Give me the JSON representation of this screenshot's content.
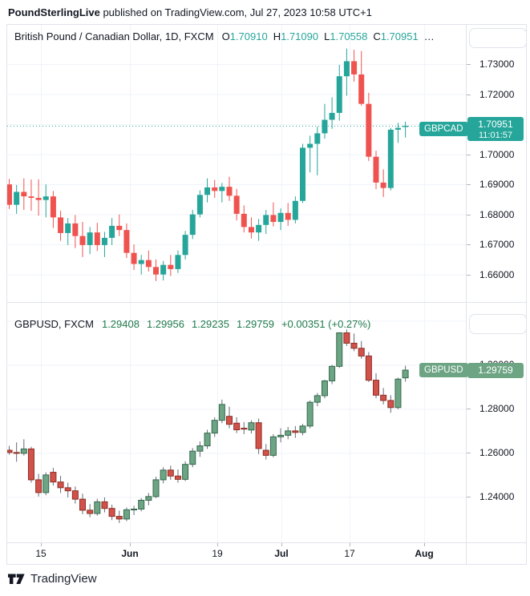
{
  "page": {
    "header": {
      "publisher": "PoundSterlingLive",
      "suffix": " published on TradingView.com, Jul 27, 2023 10:58 UTC+1"
    },
    "footer_logo_text": "TradingView"
  },
  "colors": {
    "text": "#131722",
    "grid": "#f0f3fa",
    "border": "#e0e3eb",
    "top_up": "#26a69a",
    "top_down": "#ef5350",
    "dotted_price_line": "#26a69a",
    "bot_up_fill": "#6da584",
    "bot_up_border": "#35684e",
    "bot_down_fill": "#d0524a",
    "bot_down_border": "#8f2d24",
    "bot_wick": "#676b76",
    "legend_green": "#1f7a4c",
    "gbpcad_badge": "#26a69a",
    "gbpusd_badge": "#6da584"
  },
  "top_panel": {
    "title": "British Pound / Canadian Dollar, 1D, FXCM",
    "ohlc": [
      {
        "k": "O",
        "v": "1.70910"
      },
      {
        "k": "H",
        "v": "1.71090"
      },
      {
        "k": "L",
        "v": "1.70558"
      },
      {
        "k": "C",
        "v": "1.70951"
      }
    ],
    "ellipsis": "…",
    "symbol_badge": "GBPCAD",
    "price_badge": "1.70951",
    "time_badge": "11:01:57",
    "axis_labels": [
      {
        "p": 1.73,
        "t": "1.73000"
      },
      {
        "p": 1.72,
        "t": "1.72000"
      },
      {
        "p": 1.7,
        "t": "1.70000"
      },
      {
        "p": 1.69,
        "t": "1.69000"
      },
      {
        "p": 1.68,
        "t": "1.68000"
      },
      {
        "p": 1.67,
        "t": "1.67000"
      },
      {
        "p": 1.66,
        "t": "1.66000"
      }
    ],
    "grid_prices": [
      1.73,
      1.72,
      1.71,
      1.7,
      1.69,
      1.68,
      1.67,
      1.66
    ]
  },
  "bottom_panel": {
    "title": "GBPUSD, FXCM",
    "values": [
      "1.29408",
      "1.29956",
      "1.29235",
      "1.29759"
    ],
    "change": "+0.00351 (+0.27%)",
    "symbol_badge": "GBPUSD",
    "price_badge": "1.29759",
    "axis_labels": [
      {
        "p": 1.3,
        "t": "1.30000"
      },
      {
        "p": 1.28,
        "t": "1.28000"
      },
      {
        "p": 1.26,
        "t": "1.26000"
      },
      {
        "p": 1.24,
        "t": "1.24000"
      }
    ],
    "grid_prices": [
      1.32,
      1.3,
      1.28,
      1.26,
      1.24
    ]
  },
  "time_axis": [
    {
      "t": "15",
      "x": 42,
      "bold": false
    },
    {
      "t": "Jun",
      "x": 153,
      "bold": true
    },
    {
      "t": "19",
      "x": 262,
      "bold": false
    },
    {
      "t": "Jul",
      "x": 342,
      "bold": true
    },
    {
      "t": "17",
      "x": 427,
      "bold": false
    },
    {
      "t": "Aug",
      "x": 520,
      "bold": true
    }
  ],
  "chart_data": [
    {
      "type": "candlestick",
      "title": "British Pound / Canadian Dollar, 1D, FXCM",
      "symbol": "GBPCAD",
      "timeframe": "1D",
      "last_price": 1.70951,
      "last_update_time": "11:01:57",
      "ylim": [
        1.65084,
        1.74311
      ],
      "yticks": [
        1.66,
        1.67,
        1.68,
        1.69,
        1.7,
        1.72,
        1.73
      ],
      "xticklabels": [
        "15",
        "Jun",
        "19",
        "Jul",
        "17",
        "Aug"
      ],
      "price_line": true,
      "ohlc": [
        [
          1.69,
          1.6918,
          1.6818,
          1.6832
        ],
        [
          1.6832,
          1.6898,
          1.6802,
          1.6875
        ],
        [
          1.6875,
          1.692,
          1.6815,
          1.686
        ],
        [
          1.686,
          1.6916,
          1.6812,
          1.6855
        ],
        [
          1.6855,
          1.6917,
          1.6796,
          1.6848
        ],
        [
          1.6848,
          1.69,
          1.679,
          1.686
        ],
        [
          1.686,
          1.6878,
          1.6755,
          1.679
        ],
        [
          1.679,
          1.6812,
          1.6712,
          1.6738
        ],
        [
          1.6738,
          1.6788,
          1.6698,
          1.677
        ],
        [
          1.677,
          1.6798,
          1.6688,
          1.6728
        ],
        [
          1.6728,
          1.6775,
          1.6658,
          1.6698
        ],
        [
          1.6698,
          1.6758,
          1.6668,
          1.674
        ],
        [
          1.674,
          1.6772,
          1.6678,
          1.6698
        ],
        [
          1.6698,
          1.6742,
          1.6658,
          1.6722
        ],
        [
          1.6722,
          1.6788,
          1.6698,
          1.6762
        ],
        [
          1.6762,
          1.68,
          1.6728,
          1.6748
        ],
        [
          1.6748,
          1.677,
          1.6655,
          1.6672
        ],
        [
          1.6672,
          1.67,
          1.6615,
          1.6635
        ],
        [
          1.6635,
          1.6665,
          1.66,
          1.6648
        ],
        [
          1.6648,
          1.668,
          1.661,
          1.6625
        ],
        [
          1.6625,
          1.665,
          1.6578,
          1.66
        ],
        [
          1.66,
          1.6645,
          1.658,
          1.6632
        ],
        [
          1.6632,
          1.6665,
          1.6595,
          1.6618
        ],
        [
          1.6618,
          1.668,
          1.6605,
          1.6665
        ],
        [
          1.6665,
          1.6745,
          1.665,
          1.6732
        ],
        [
          1.6732,
          1.6815,
          1.6718,
          1.68
        ],
        [
          1.68,
          1.688,
          1.679,
          1.6865
        ],
        [
          1.6865,
          1.692,
          1.684,
          1.689
        ],
        [
          1.689,
          1.6915,
          1.6855,
          1.6878
        ],
        [
          1.6878,
          1.6905,
          1.684,
          1.6892
        ],
        [
          1.6892,
          1.6925,
          1.6845,
          1.6862
        ],
        [
          1.6862,
          1.6885,
          1.678,
          1.6802
        ],
        [
          1.6802,
          1.683,
          1.674,
          1.6758
        ],
        [
          1.6758,
          1.679,
          1.672,
          1.674
        ],
        [
          1.674,
          1.6785,
          1.6712,
          1.6765
        ],
        [
          1.6765,
          1.6815,
          1.6735,
          1.6798
        ],
        [
          1.6798,
          1.684,
          1.676,
          1.6775
        ],
        [
          1.6775,
          1.682,
          1.6748,
          1.6805
        ],
        [
          1.6805,
          1.6838,
          1.6762,
          1.6782
        ],
        [
          1.6782,
          1.686,
          1.677,
          1.6845
        ],
        [
          1.6845,
          1.7035,
          1.6838,
          1.7022
        ],
        [
          1.7022,
          1.7062,
          1.694,
          1.7035
        ],
        [
          1.7035,
          1.7092,
          1.693,
          1.707
        ],
        [
          1.707,
          1.7168,
          1.7052,
          1.7115
        ],
        [
          1.7115,
          1.719,
          1.7085,
          1.7138
        ],
        [
          1.7138,
          1.7298,
          1.7112,
          1.726
        ],
        [
          1.726,
          1.7352,
          1.7195,
          1.731
        ],
        [
          1.731,
          1.7348,
          1.7242,
          1.7266
        ],
        [
          1.7266,
          1.7344,
          1.7162,
          1.7168
        ],
        [
          1.7168,
          1.7205,
          1.6978,
          1.6992
        ],
        [
          1.6992,
          1.7012,
          1.6884,
          1.6906
        ],
        [
          1.6906,
          1.695,
          1.6858,
          1.6888
        ],
        [
          1.6888,
          1.7088,
          1.688,
          1.7082
        ],
        [
          1.7082,
          1.7105,
          1.7038,
          1.7088
        ],
        [
          1.7091,
          1.7109,
          1.70558,
          1.70951
        ]
      ]
    },
    {
      "type": "candlestick",
      "title": "GBPUSD, FXCM",
      "symbol": "GBPUSD",
      "open": 1.29408,
      "high": 1.29956,
      "low": 1.29235,
      "close": 1.29759,
      "change": "+0.00351 (+0.27%)",
      "ylim": [
        1.21941,
        1.32814
      ],
      "yticks": [
        1.24,
        1.26,
        1.28,
        1.3
      ],
      "xticklabels": [
        "15",
        "Jun",
        "19",
        "Jul",
        "17",
        "Aug"
      ],
      "price_line": false,
      "ohlc": [
        [
          1.2612,
          1.2632,
          1.2592,
          1.2602
        ],
        [
          1.2602,
          1.2648,
          1.256,
          1.2598
        ],
        [
          1.2598,
          1.2662,
          1.2588,
          1.2618
        ],
        [
          1.2618,
          1.2628,
          1.2465,
          1.2478
        ],
        [
          1.2478,
          1.2505,
          1.2402,
          1.242
        ],
        [
          1.242,
          1.2512,
          1.2408,
          1.25
        ],
        [
          1.2512,
          1.2532,
          1.2452,
          1.2468
        ],
        [
          1.2468,
          1.2496,
          1.2418,
          1.2442
        ],
        [
          1.2442,
          1.2465,
          1.2398,
          1.2428
        ],
        [
          1.2428,
          1.2448,
          1.237,
          1.239
        ],
        [
          1.239,
          1.2415,
          1.2322,
          1.234
        ],
        [
          1.234,
          1.2368,
          1.2308,
          1.2325
        ],
        [
          1.2325,
          1.2392,
          1.2315,
          1.2378
        ],
        [
          1.2378,
          1.2398,
          1.233,
          1.2348
        ],
        [
          1.2348,
          1.2365,
          1.2295,
          1.2312
        ],
        [
          1.2312,
          1.2338,
          1.2282,
          1.23
        ],
        [
          1.23,
          1.2352,
          1.229,
          1.2342
        ],
        [
          1.2342,
          1.236,
          1.2318,
          1.2345
        ],
        [
          1.2345,
          1.2395,
          1.2335,
          1.2385
        ],
        [
          1.2385,
          1.2418,
          1.2362,
          1.2402
        ],
        [
          1.2402,
          1.2492,
          1.2395,
          1.2478
        ],
        [
          1.2478,
          1.2535,
          1.2462,
          1.2522
        ],
        [
          1.2522,
          1.2542,
          1.2478,
          1.2495
        ],
        [
          1.2495,
          1.2525,
          1.2465,
          1.248
        ],
        [
          1.248,
          1.2562,
          1.2472,
          1.2548
        ],
        [
          1.2548,
          1.2622,
          1.2535,
          1.2608
        ],
        [
          1.2608,
          1.2652,
          1.2582,
          1.2632
        ],
        [
          1.2632,
          1.2705,
          1.2618,
          1.269
        ],
        [
          1.269,
          1.2762,
          1.2672,
          1.2748
        ],
        [
          1.2748,
          1.2842,
          1.2735,
          1.282
        ],
        [
          1.2766,
          1.281,
          1.2712,
          1.273
        ],
        [
          1.2735,
          1.2762,
          1.269,
          1.2705
        ],
        [
          1.2712,
          1.274,
          1.2685,
          1.2708
        ],
        [
          1.2704,
          1.2748,
          1.2688,
          1.2737
        ],
        [
          1.2737,
          1.2756,
          1.2595,
          1.262
        ],
        [
          1.2612,
          1.264,
          1.257,
          1.2589
        ],
        [
          1.2589,
          1.2685,
          1.258,
          1.2673
        ],
        [
          1.2673,
          1.2712,
          1.2648,
          1.268
        ],
        [
          1.268,
          1.2718,
          1.2662,
          1.27
        ],
        [
          1.27,
          1.2722,
          1.2668,
          1.2693
        ],
        [
          1.2693,
          1.2732,
          1.268,
          1.2722
        ],
        [
          1.2722,
          1.2838,
          1.2712,
          1.283
        ],
        [
          1.283,
          1.2872,
          1.2812,
          1.286
        ],
        [
          1.286,
          1.2932,
          1.2848,
          1.2927
        ],
        [
          1.2927,
          1.3,
          1.2912,
          1.2993
        ],
        [
          1.2993,
          1.3148,
          1.2985,
          1.3145
        ],
        [
          1.3145,
          1.316,
          1.3085,
          1.3098
        ],
        [
          1.3098,
          1.3142,
          1.3062,
          1.3075
        ],
        [
          1.3075,
          1.3108,
          1.3028,
          1.304
        ],
        [
          1.304,
          1.3058,
          1.2922,
          1.293
        ],
        [
          1.293,
          1.2962,
          1.2848,
          1.2862
        ],
        [
          1.2862,
          1.2895,
          1.282,
          1.2838
        ],
        [
          1.2838,
          1.2862,
          1.2782,
          1.2806
        ],
        [
          1.2806,
          1.2942,
          1.2798,
          1.2935
        ],
        [
          1.29408,
          1.29956,
          1.29235,
          1.29759
        ]
      ]
    }
  ]
}
